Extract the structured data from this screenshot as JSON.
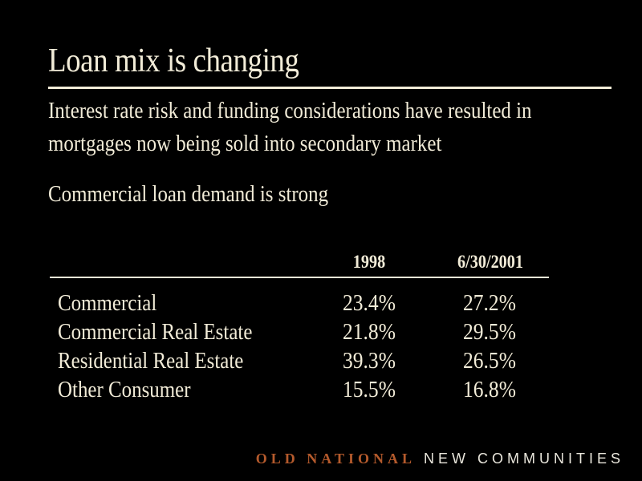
{
  "slide": {
    "title": "Loan mix is changing",
    "bullets": [
      "Interest rate risk and funding considerations have resulted in",
      "mortgages now being sold into secondary market",
      "Commercial loan demand is strong"
    ]
  },
  "table": {
    "columns": [
      "1998",
      "6/30/2001"
    ],
    "rows": [
      {
        "label": "Commercial",
        "v1998": "23.4%",
        "v2001": "27.2%"
      },
      {
        "label": "Commercial Real Estate",
        "v1998": "21.8%",
        "v2001": "29.5%"
      },
      {
        "label": "Residential Real Estate",
        "v1998": "39.3%",
        "v2001": "26.5%"
      },
      {
        "label": "Other Consumer",
        "v1998": "15.5%",
        "v2001": "16.8%"
      }
    ]
  },
  "footer": {
    "brand_old": "OLD NATIONAL",
    "brand_new": "NEW COMMUNITIES"
  }
}
